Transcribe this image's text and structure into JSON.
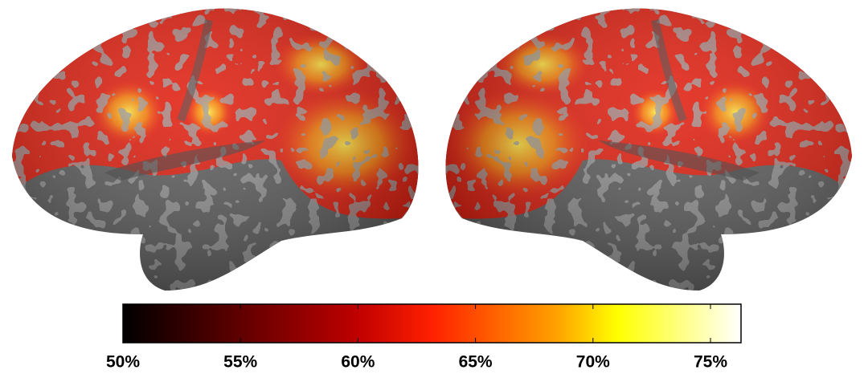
{
  "colorbar": {
    "range": [
      50,
      76.3
    ],
    "ticks": [
      {
        "value": 50,
        "label": "50%"
      },
      {
        "value": 55,
        "label": "55%"
      },
      {
        "value": 60,
        "label": "60%"
      },
      {
        "value": 65,
        "label": "65%"
      },
      {
        "value": 70,
        "label": "70%"
      },
      {
        "value": 75,
        "label": "75%"
      }
    ]
  }
}
